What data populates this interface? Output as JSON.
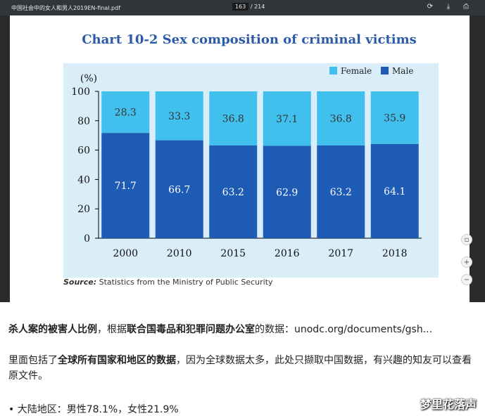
{
  "viewer": {
    "doc_title": "中国社会中的女人和男人2019EN-final.pdf",
    "page_current": "163",
    "page_total": "/ 214",
    "icons": [
      "rotate-icon",
      "download-icon",
      "print-icon"
    ],
    "side_controls": [
      "fit-page-icon",
      "zoom-in-icon",
      "zoom-out-icon"
    ],
    "side_labels": [
      "▫",
      "+",
      "−"
    ]
  },
  "chart_data": {
    "type": "bar",
    "stacked": true,
    "title": "Chart 10-2  Sex composition of criminal victims",
    "ylabel": "(%)",
    "categories": [
      "2000",
      "2010",
      "2015",
      "2016",
      "2017",
      "2018"
    ],
    "series": [
      {
        "name": "Male",
        "color": "#1e5bb5",
        "values": [
          71.7,
          66.7,
          63.2,
          62.9,
          63.2,
          64.1
        ]
      },
      {
        "name": "Female",
        "color": "#41c0ee",
        "values": [
          28.3,
          33.3,
          36.8,
          37.1,
          36.8,
          35.9
        ]
      }
    ],
    "ylim": [
      0,
      100
    ],
    "yticks": [
      0,
      20,
      40,
      60,
      80,
      100
    ],
    "legend": "top-right",
    "grid": false,
    "source_label": "Source:",
    "source_text": " Statistics from the Ministry of Public Security",
    "background": "#d9eef8"
  },
  "article": {
    "p1_bold1": "杀人案的被害人比例",
    "p1_text1": "，根据",
    "p1_bold2": "联合国毒品和犯罪问题办公室",
    "p1_text2": "的数据：",
    "p1_link": "unodc.org/documents/gsh...",
    "p2_text1": "里面包括了",
    "p2_bold": "全球所有国家和地区的数据",
    "p2_text2": "，因为全球数据太多，此处只撷取中国数据，有兴趣的知友可以查看原文件。",
    "bullet": "•  大陆地区：男性78.1%，女性21.9%",
    "watermark": "梦里花落声"
  }
}
